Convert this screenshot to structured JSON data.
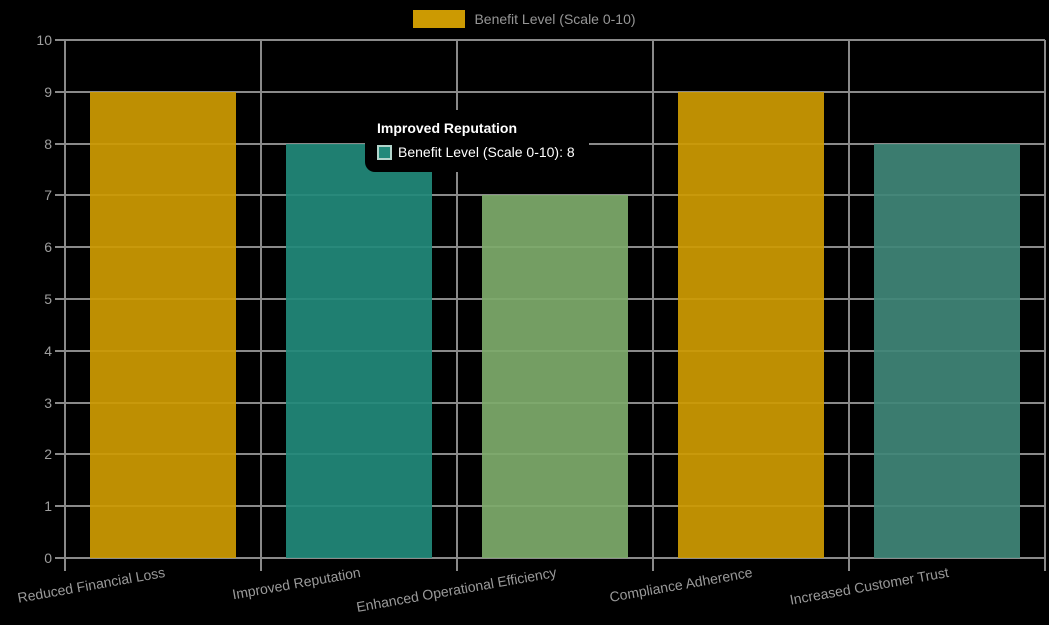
{
  "legend": {
    "label": "Benefit Level (Scale 0-10)",
    "swatch_color": "#cc9a02"
  },
  "chart_data": {
    "type": "bar",
    "title": "",
    "categories": [
      "Reduced Financial Loss",
      "Improved Reputation",
      "Enhanced Operational Efficiency",
      "Compliance Adherence",
      "Increased Customer Trust"
    ],
    "series": [
      {
        "name": "Benefit Level (Scale 0-10)",
        "values": [
          9,
          8,
          7,
          9,
          8
        ]
      }
    ],
    "bar_colors": [
      "#cc9a02",
      "#21897a",
      "#7daa6b",
      "#cc9a02",
      "#3f8577"
    ],
    "ylim": [
      0,
      10
    ],
    "ytick_labels": [
      "0",
      "1",
      "2",
      "3",
      "4",
      "5",
      "6",
      "7",
      "8",
      "9",
      "10"
    ],
    "grid": true,
    "legend_position": "top",
    "background": "#000000",
    "grid_color": "#8a8a8a",
    "tick_text_color": "#9e9e9e"
  },
  "tooltip": {
    "title": "Improved Reputation",
    "label": "Benefit Level (Scale 0-10): 8",
    "swatch_color": "#21897a"
  }
}
